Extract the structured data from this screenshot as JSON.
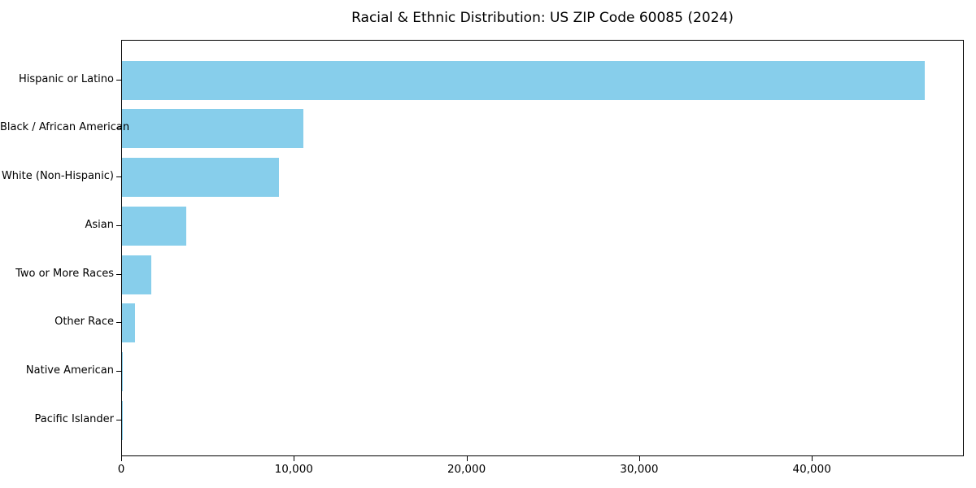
{
  "chart_data": {
    "type": "bar",
    "orientation": "horizontal",
    "title": "Racial & Ethnic Distribution: US ZIP Code 60085 (2024)",
    "categories": [
      "Hispanic or Latino",
      "Black / African American",
      "White (Non-Hispanic)",
      "Asian",
      "Two or More Races",
      "Other Race",
      "Native American",
      "Pacific Islander"
    ],
    "values": [
      46500,
      10500,
      9100,
      3700,
      1700,
      750,
      50,
      20
    ],
    "xlabel": "",
    "ylabel": "",
    "xlim": [
      0,
      48800
    ],
    "xticks": {
      "values": [
        0,
        10000,
        20000,
        30000,
        40000
      ],
      "labels": [
        "0",
        "10,000",
        "20,000",
        "30,000",
        "40,000"
      ]
    },
    "bar_color": "#87CEEB",
    "grid": false,
    "legend": null
  }
}
